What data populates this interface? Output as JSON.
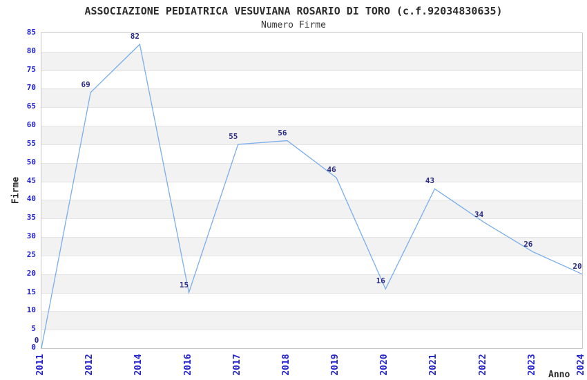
{
  "chart_data": {
    "type": "line",
    "title": "ASSOCIAZIONE PEDIATRICA VESUVIANA ROSARIO DI TORO (c.f.92034830635)",
    "subtitle": "Numero Firme",
    "xlabel": "Anno",
    "ylabel": "Firme",
    "categories": [
      "2011",
      "2012",
      "2014",
      "2016",
      "2017",
      "2018",
      "2019",
      "2020",
      "2021",
      "2022",
      "2023",
      "2024"
    ],
    "values": [
      0,
      69,
      82,
      15,
      55,
      56,
      46,
      16,
      43,
      34,
      26,
      20
    ],
    "ylim": [
      0,
      85
    ],
    "ytick_step": 5,
    "grid": "horizontal-bands-alternating",
    "legend": "none",
    "point_labels_visible": true,
    "colors": {
      "line": "#7aade9",
      "tick_label": "#2323cd",
      "data_label": "#2a2a85",
      "title": "#2b2b2b",
      "axis_label": "#2b2b2b",
      "band_gray": "#f2f2f2",
      "gridline": "#e4e4e4",
      "plot_border": "#c8c8c8",
      "background": "#ffffff"
    }
  }
}
